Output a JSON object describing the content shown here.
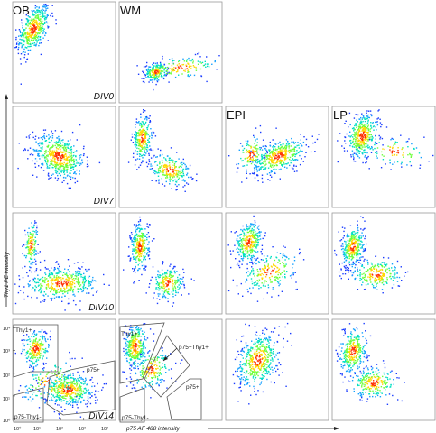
{
  "chart_data": {
    "type": "scatter",
    "xlabel": "p75 AF 488 intensity",
    "ylabel": "Thy1 PE intensity",
    "columns": [
      "OB",
      "WM",
      "EPI",
      "LP"
    ],
    "rows": [
      "DIV0",
      "DIV7",
      "DIV10",
      "DIV14"
    ],
    "tick_labels": [
      "10⁰",
      "10¹",
      "10²",
      "10³",
      "10⁴"
    ],
    "panels": [
      {
        "col": "OB",
        "row": "DIV0",
        "label": "OB",
        "day": "DIV0",
        "clusters": [
          {
            "x": 0.8,
            "y": 3.2,
            "sx": 0.35,
            "sy": 0.55,
            "r": 0.5,
            "n": 450
          }
        ]
      },
      {
        "col": "WM",
        "row": "DIV0",
        "label": "WM",
        "day": "",
        "clusters": [
          {
            "x": 1.5,
            "y": 1.3,
            "sx": 0.25,
            "sy": 0.2,
            "r": 0.2,
            "n": 200
          },
          {
            "x": 2.6,
            "y": 1.5,
            "sx": 0.8,
            "sy": 0.25,
            "r": 0.3,
            "n": 140
          }
        ]
      },
      {
        "col": "OB",
        "row": "DIV7",
        "label": "",
        "day": "DIV7",
        "clusters": [
          {
            "x": 1.9,
            "y": 2.2,
            "sx": 0.55,
            "sy": 0.5,
            "r": -0.3,
            "n": 550
          }
        ]
      },
      {
        "col": "WM",
        "row": "DIV7",
        "label": "",
        "day": "",
        "clusters": [
          {
            "x": 0.9,
            "y": 3.0,
            "sx": 0.2,
            "sy": 0.5,
            "r": 0.1,
            "n": 280
          },
          {
            "x": 2.1,
            "y": 1.6,
            "sx": 0.45,
            "sy": 0.35,
            "r": -0.2,
            "n": 240
          }
        ]
      },
      {
        "col": "EPI",
        "row": "DIV7",
        "label": "EPI",
        "day": "",
        "clusters": [
          {
            "x": 2.2,
            "y": 2.2,
            "sx": 0.6,
            "sy": 0.4,
            "r": 0.5,
            "n": 420
          },
          {
            "x": 1.0,
            "y": 2.3,
            "sx": 0.3,
            "sy": 0.4,
            "r": 0.2,
            "n": 120
          }
        ]
      },
      {
        "col": "LP",
        "row": "DIV7",
        "label": "LP",
        "day": "",
        "clusters": [
          {
            "x": 1.2,
            "y": 3.1,
            "sx": 0.35,
            "sy": 0.5,
            "r": 0.2,
            "n": 400
          },
          {
            "x": 2.6,
            "y": 2.4,
            "sx": 0.7,
            "sy": 0.3,
            "r": -0.3,
            "n": 90
          }
        ]
      },
      {
        "col": "OB",
        "row": "DIV10",
        "label": "",
        "day": "DIV10",
        "clusters": [
          {
            "x": 2.0,
            "y": 1.3,
            "sx": 0.8,
            "sy": 0.35,
            "r": 0.1,
            "n": 450
          },
          {
            "x": 0.7,
            "y": 3.0,
            "sx": 0.15,
            "sy": 0.5,
            "r": 0.2,
            "n": 150
          }
        ]
      },
      {
        "col": "WM",
        "row": "DIV10",
        "label": "",
        "day": "",
        "clusters": [
          {
            "x": 0.8,
            "y": 2.9,
            "sx": 0.2,
            "sy": 0.55,
            "r": 0.1,
            "n": 300
          },
          {
            "x": 2.0,
            "y": 1.3,
            "sx": 0.35,
            "sy": 0.35,
            "r": 0.0,
            "n": 220
          }
        ]
      },
      {
        "col": "EPI",
        "row": "DIV10",
        "label": "",
        "day": "",
        "clusters": [
          {
            "x": 0.9,
            "y": 3.1,
            "sx": 0.3,
            "sy": 0.45,
            "r": 0.2,
            "n": 330
          },
          {
            "x": 1.8,
            "y": 1.8,
            "sx": 0.6,
            "sy": 0.45,
            "r": 0.4,
            "n": 220
          }
        ]
      },
      {
        "col": "LP",
        "row": "DIV10",
        "label": "",
        "day": "",
        "clusters": [
          {
            "x": 0.8,
            "y": 2.9,
            "sx": 0.25,
            "sy": 0.45,
            "r": 0.2,
            "n": 330
          },
          {
            "x": 1.8,
            "y": 1.7,
            "sx": 0.55,
            "sy": 0.35,
            "r": 0.0,
            "n": 250
          }
        ]
      },
      {
        "col": "OB",
        "row": "DIV14",
        "label": "",
        "day": "DIV14",
        "clusters": [
          {
            "x": 2.3,
            "y": 1.3,
            "sx": 0.55,
            "sy": 0.35,
            "r": 0.0,
            "n": 450
          },
          {
            "x": 0.9,
            "y": 3.1,
            "sx": 0.3,
            "sy": 0.4,
            "r": 0.1,
            "n": 230
          },
          {
            "x": 1.5,
            "y": 1.6,
            "sx": 0.6,
            "sy": 0.5,
            "r": 0.3,
            "n": 130
          }
        ]
      },
      {
        "col": "WM",
        "row": "DIV14",
        "label": "",
        "day": "",
        "clusters": [
          {
            "x": 0.6,
            "y": 3.2,
            "sx": 0.25,
            "sy": 0.5,
            "r": 0.2,
            "n": 330
          },
          {
            "x": 1.3,
            "y": 2.2,
            "sx": 0.4,
            "sy": 0.45,
            "r": 0.3,
            "n": 200
          }
        ]
      },
      {
        "col": "EPI",
        "row": "DIV14",
        "label": "",
        "day": "",
        "clusters": [
          {
            "x": 1.3,
            "y": 2.6,
            "sx": 0.45,
            "sy": 0.6,
            "r": 0.3,
            "n": 480
          }
        ]
      },
      {
        "col": "LP",
        "row": "DIV14",
        "label": "",
        "day": "",
        "clusters": [
          {
            "x": 0.8,
            "y": 3.0,
            "sx": 0.3,
            "sy": 0.5,
            "r": 0.2,
            "n": 320
          },
          {
            "x": 1.7,
            "y": 1.6,
            "sx": 0.5,
            "sy": 0.35,
            "r": 0.1,
            "n": 240
          }
        ]
      }
    ],
    "gates": {
      "ob_thy1": "Thy1+",
      "ob_p75": "p75+",
      "ob_neg": "p75-Thy1-",
      "wm_thy1": "Thy1+",
      "wm_double": "p75+Thy1+",
      "wm_p75": "p75+",
      "wm_neg": "p75-Thy1-"
    },
    "colors": [
      "#1a3cff",
      "#14a0ff",
      "#00e0c0",
      "#6cff3a",
      "#ffd800",
      "#ff3000"
    ]
  }
}
